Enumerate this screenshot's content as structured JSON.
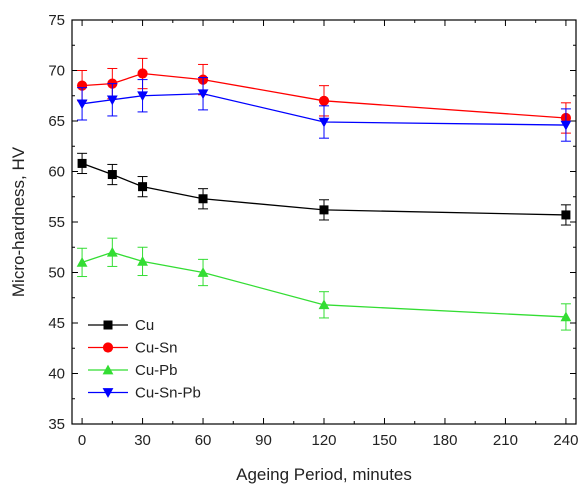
{
  "chart_data": {
    "type": "line",
    "title": "",
    "xlabel": "Ageing Period, minutes",
    "ylabel": "Micro-hardness, HV",
    "xlim": [
      -5,
      245
    ],
    "ylim": [
      35,
      75
    ],
    "xticks": [
      0,
      30,
      60,
      90,
      120,
      150,
      180,
      210,
      240
    ],
    "yticks": [
      35,
      40,
      45,
      50,
      55,
      60,
      65,
      70,
      75
    ],
    "x": [
      0,
      15,
      30,
      60,
      120,
      240
    ],
    "grid": false,
    "legend_position": "bottom-left",
    "series": [
      {
        "name": "Cu",
        "color": "#000000",
        "marker": "square",
        "values": [
          60.8,
          59.7,
          58.5,
          57.3,
          56.2,
          55.7
        ],
        "errors": [
          1.0,
          1.0,
          1.0,
          1.0,
          1.0,
          1.0
        ]
      },
      {
        "name": "Cu-Sn",
        "color": "#ff0000",
        "marker": "circle",
        "values": [
          68.5,
          68.7,
          69.7,
          69.1,
          67.0,
          65.3
        ],
        "errors": [
          1.5,
          1.5,
          1.5,
          1.5,
          1.5,
          1.5
        ]
      },
      {
        "name": "Cu-Pb",
        "color": "#33dd33",
        "marker": "triangle-up",
        "values": [
          51.0,
          52.0,
          51.1,
          50.0,
          46.8,
          45.6
        ],
        "errors": [
          1.4,
          1.4,
          1.4,
          1.3,
          1.3,
          1.3
        ]
      },
      {
        "name": "Cu-Sn-Pb",
        "color": "#0000ff",
        "marker": "triangle-down",
        "values": [
          66.7,
          67.1,
          67.5,
          67.7,
          64.9,
          64.6
        ],
        "errors": [
          1.6,
          1.6,
          1.6,
          1.6,
          1.6,
          1.6
        ]
      }
    ]
  }
}
